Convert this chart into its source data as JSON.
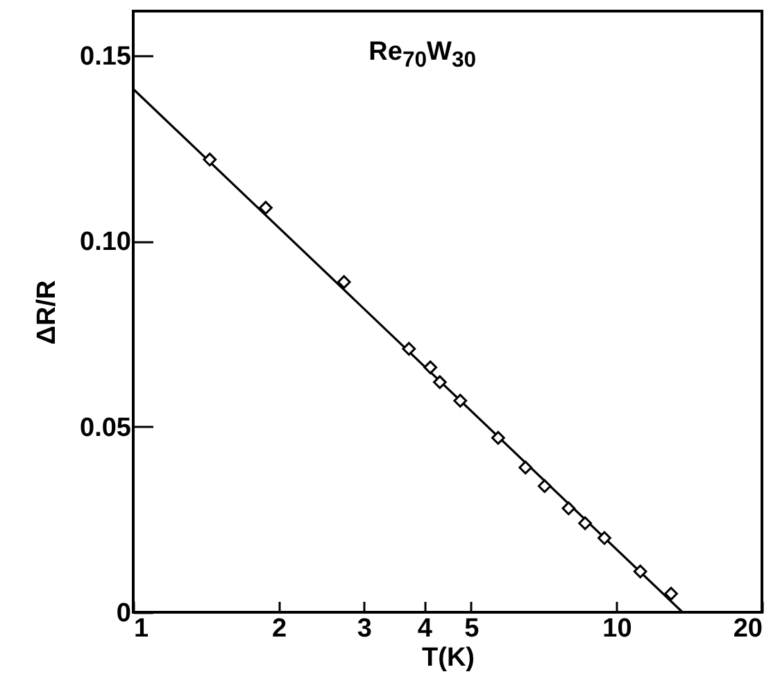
{
  "chart_data": {
    "type": "scatter",
    "xlabel": "T(K)",
    "ylabel": "ΔR/R",
    "annotations": [
      "Re$_{70}$W$_{30}$"
    ],
    "log": "x",
    "grid": false,
    "xlim": [
      1,
      20
    ],
    "xticks": [
      1,
      2,
      3,
      4,
      5,
      10,
      20
    ],
    "ylim": [
      0,
      0.162
    ],
    "yticks": [
      0,
      {
        "value": 0.05,
        "label": "0.05"
      },
      {
        "value": 0.1,
        "label": "0.10"
      },
      {
        "value": 0.15,
        "label": "0.15"
      }
    ],
    "series": [
      {
        "type": "line",
        "color": "#000000",
        "x": [
          1,
          13.7
        ],
        "values": [
          0.141,
          0
        ]
      },
      {
        "marker": "diamond",
        "color": "#000000",
        "x": [
          1.44,
          1.88,
          2.73,
          3.72,
          4.12,
          4.31,
          4.75,
          5.69,
          6.48,
          7.1,
          7.96,
          8.61,
          9.44,
          11.2,
          12.97
        ],
        "values": [
          0.122,
          0.109,
          0.089,
          0.071,
          0.066,
          0.062,
          0.057,
          0.047,
          0.039,
          0.034,
          0.028,
          0.024,
          0.02,
          0.011,
          0.005
        ]
      }
    ]
  }
}
